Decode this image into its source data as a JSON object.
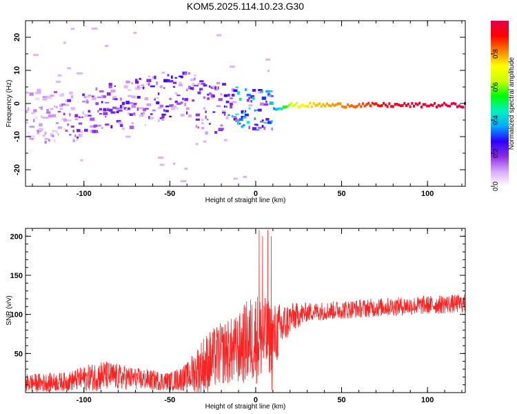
{
  "figure_title": "KOM5.2025.114.10.23.G30",
  "chart_data": [
    {
      "type": "heatmap",
      "title": "",
      "xlabel": "Height of straight line (km)",
      "ylabel": "Frequency (Hz)",
      "xlim": [
        -134,
        122
      ],
      "ylim": [
        -25,
        25
      ],
      "xticks": [
        -100,
        -50,
        0,
        50,
        100
      ],
      "yticks": [
        -20,
        -10,
        0,
        10,
        20
      ],
      "colorbar": {
        "label": "Normalized spectral amplitude",
        "range": [
          0,
          1
        ],
        "ticks": [
          "0.0",
          "0.2",
          "0.4",
          "0.6",
          "0.8"
        ],
        "colors": [
          "#ffffff",
          "#d8a8ff",
          "#8a2be2",
          "#2a00ff",
          "#00aaff",
          "#00f0c0",
          "#00ff00",
          "#ccff00",
          "#ffff00",
          "#ff7f00",
          "#ff0000",
          "#e0004a"
        ]
      },
      "ridge": [
        {
          "x": -130,
          "f": -4,
          "amp": 0.1
        },
        {
          "x": -110,
          "f": -4,
          "amp": 0.15
        },
        {
          "x": -90,
          "f": -2,
          "amp": 0.2
        },
        {
          "x": -70,
          "f": 0,
          "amp": 0.18
        },
        {
          "x": -50,
          "f": 2,
          "amp": 0.22
        },
        {
          "x": -40,
          "f": 3,
          "amp": 0.2
        },
        {
          "x": -30,
          "f": -2,
          "amp": 0.18
        },
        {
          "x": -20,
          "f": -1,
          "amp": 0.2
        },
        {
          "x": -15,
          "f": 0,
          "amp": 0.3
        },
        {
          "x": -10,
          "f": -1.5,
          "amp": 0.45
        },
        {
          "x": 0,
          "f": -1.5,
          "amp": 0.3
        },
        {
          "x": 10,
          "f": -1.5,
          "amp": 0.35
        },
        {
          "x": 20,
          "f": -0.5,
          "amp": 0.65
        },
        {
          "x": 30,
          "f": -0.5,
          "amp": 0.75
        },
        {
          "x": 60,
          "f": -0.5,
          "amp": 0.85
        },
        {
          "x": 80,
          "f": -0.5,
          "amp": 0.95
        },
        {
          "x": 122,
          "f": -0.5,
          "amp": 1.0
        }
      ]
    },
    {
      "type": "line",
      "title": "",
      "xlabel": "Height of straight line (km)",
      "ylabel": "SNR (v/v)",
      "xlim": [
        -134,
        122
      ],
      "ylim": [
        0,
        210
      ],
      "xticks": [
        -100,
        -50,
        0,
        50,
        100
      ],
      "yticks": [
        50,
        100,
        150,
        200
      ],
      "series": [
        {
          "color": "#ff2020",
          "envelope": [
            {
              "x": -134,
              "mean": 12,
              "spread": 12
            },
            {
              "x": -110,
              "mean": 14,
              "spread": 12
            },
            {
              "x": -90,
              "mean": 22,
              "spread": 20
            },
            {
              "x": -70,
              "mean": 18,
              "spread": 14
            },
            {
              "x": -50,
              "mean": 14,
              "spread": 12
            },
            {
              "x": -40,
              "mean": 20,
              "spread": 18
            },
            {
              "x": -30,
              "mean": 35,
              "spread": 40
            },
            {
              "x": -20,
              "mean": 50,
              "spread": 40
            },
            {
              "x": -10,
              "mean": 55,
              "spread": 45
            },
            {
              "x": -5,
              "mean": 65,
              "spread": 55
            },
            {
              "x": 0,
              "mean": 70,
              "spread": 60
            },
            {
              "x": 10,
              "mean": 70,
              "spread": 45
            },
            {
              "x": 20,
              "mean": 95,
              "spread": 20
            },
            {
              "x": 30,
              "mean": 103,
              "spread": 12
            },
            {
              "x": 50,
              "mean": 106,
              "spread": 12
            },
            {
              "x": 80,
              "mean": 110,
              "spread": 12
            },
            {
              "x": 122,
              "mean": 114,
              "spread": 12
            }
          ],
          "spikes": [
            {
              "x": 2,
              "y": 208
            },
            {
              "x": 4,
              "y": 200
            },
            {
              "x": 7,
              "y": 208
            },
            {
              "x": 9,
              "y": 200
            },
            {
              "x": 9.5,
              "y": 3
            }
          ]
        }
      ]
    }
  ]
}
